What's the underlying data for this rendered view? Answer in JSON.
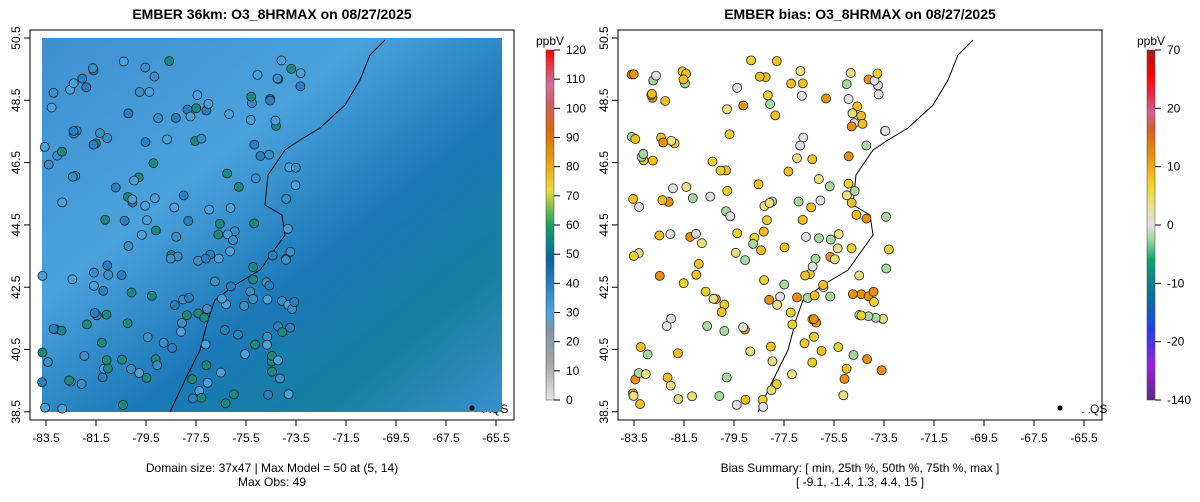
{
  "chart_data": [
    {
      "type": "heatmap",
      "title": "EMBER 36km: O3_8HRMAX on 08/27/2025",
      "xticks": [
        "-83.5",
        "-81.5",
        "-79.5",
        "-77.5",
        "-75.5",
        "-73.5",
        "-71.5",
        "-69.5",
        "-67.5",
        "-65.5"
      ],
      "yticks": [
        "50.5",
        "48.5",
        "46.5",
        "44.5",
        "42.5",
        "40.5",
        "38.5"
      ],
      "xlim": [
        -84,
        -65.5
      ],
      "ylim": [
        38.5,
        50.5
      ],
      "colorbar": {
        "unit": "ppbV",
        "ticks": [
          "120",
          "110",
          "100",
          "90",
          "80",
          "70",
          "60",
          "50",
          "40",
          "30",
          "20",
          "10",
          "0"
        ],
        "range": [
          0,
          120
        ]
      },
      "legend": "AQS",
      "legend_position": "bottom-right",
      "footer": [
        "Domain size: 37x47 | Max Model = 50 at (5, 14)",
        "Max Obs: 49"
      ]
    },
    {
      "type": "scatter",
      "title": "EMBER bias: O3_8HRMAX on 08/27/2025",
      "xticks": [
        "-83.5",
        "-81.5",
        "-79.5",
        "-77.5",
        "-75.5",
        "-73.5",
        "-71.5",
        "-69.5",
        "-67.5",
        "-65.5"
      ],
      "yticks": [
        "50.5",
        "48.5",
        "46.5",
        "44.5",
        "42.5",
        "40.5",
        "38.5"
      ],
      "colorbar": {
        "unit": "ppbV",
        "ticks": [
          "70",
          "20",
          "10",
          "0",
          "-10",
          "-20",
          "-140"
        ]
      },
      "legend": "AQS",
      "legend_position": "bottom-right",
      "footer": [
        "Bias Summary: [ min, 25th %, 50th %, 75th %, max ]",
        "[ -9.1,  -1.4,  1.3,  4.4,  15 ]"
      ],
      "summary": {
        "min": -9.1,
        "p25": -1.4,
        "p50": 1.3,
        "p75": 4.4,
        "max": 15
      }
    }
  ]
}
